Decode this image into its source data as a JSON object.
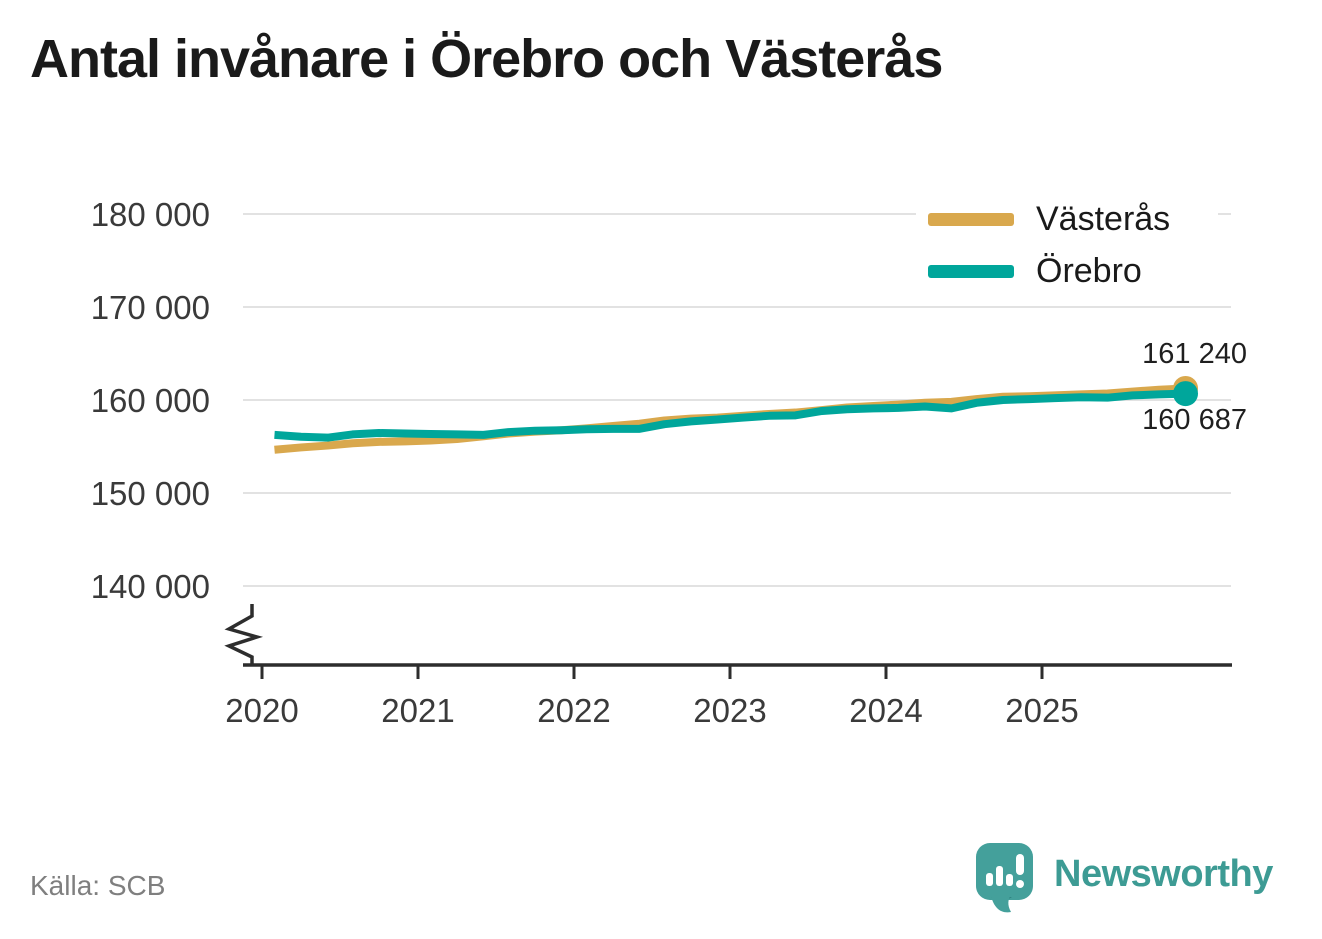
{
  "footer": {
    "brand": "Newsworthy"
  },
  "chart_data": {
    "type": "line",
    "title": "Antal invånare i Örebro och Västerås",
    "source": "Källa: SCB",
    "xlabel": "",
    "ylabel": "",
    "grid": "horizontal",
    "axis_break_bottom": true,
    "legend_position": "top-right",
    "ylim": [
      135000,
      182000
    ],
    "yticks": [
      180000,
      170000,
      160000,
      150000,
      140000
    ],
    "ytick_labels": [
      "180 000",
      "170 000",
      "160 000",
      "150 000",
      "140 000"
    ],
    "xticks": [
      2020,
      2021,
      2022,
      2023,
      2024,
      2025
    ],
    "xtick_labels": [
      "2020",
      "2021",
      "2022",
      "2023",
      "2024",
      "2025"
    ],
    "x": [
      2020.08,
      2020.25,
      2020.42,
      2020.58,
      2020.75,
      2020.92,
      2021.08,
      2021.25,
      2021.42,
      2021.58,
      2021.75,
      2021.92,
      2022.08,
      2022.25,
      2022.42,
      2022.58,
      2022.75,
      2022.92,
      2023.08,
      2023.25,
      2023.42,
      2023.58,
      2023.75,
      2023.92,
      2024.08,
      2024.25,
      2024.42,
      2024.58,
      2024.75,
      2024.92,
      2025.08,
      2025.25,
      2025.42,
      2025.58,
      2025.75,
      2025.92
    ],
    "series": [
      {
        "name": "Västerås",
        "color": "#D9A84D",
        "end_label": "161 240",
        "end_value": 161240,
        "values": [
          154650,
          154900,
          155100,
          155350,
          155500,
          155550,
          155650,
          155800,
          156100,
          156400,
          156600,
          156750,
          156950,
          157200,
          157450,
          157800,
          158000,
          158100,
          158300,
          158500,
          158650,
          158900,
          159200,
          159350,
          159500,
          159700,
          159800,
          160100,
          160350,
          160400,
          160500,
          160600,
          160700,
          160900,
          161100,
          161240
        ]
      },
      {
        "name": "Örebro",
        "color": "#00A69B",
        "end_label": "160 687",
        "end_value": 160687,
        "values": [
          156250,
          156050,
          155950,
          156300,
          156450,
          156400,
          156350,
          156300,
          156250,
          156550,
          156700,
          156750,
          156850,
          156900,
          156900,
          157400,
          157700,
          157900,
          158100,
          158300,
          158350,
          158800,
          159000,
          159100,
          159150,
          159300,
          159100,
          159700,
          160000,
          160100,
          160200,
          160300,
          160250,
          160500,
          160600,
          160687
        ]
      }
    ]
  }
}
